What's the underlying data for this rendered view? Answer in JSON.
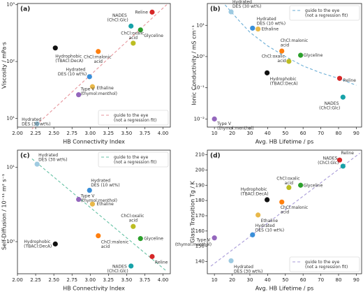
{
  "chart_data": [
    {
      "type": "scatter",
      "panel": "(a)",
      "x_label": "HB Connectivity Index",
      "y_label": "Viscosity / mPa·s",
      "log_y": true,
      "legend": "lower right",
      "xlim": [
        2.0,
        4.1
      ],
      "ylim": [
        7,
        1050
      ],
      "xticks": [
        {
          "value": 2,
          "label": "2.00"
        },
        2.25,
        {
          "value": 2.5,
          "label": "2.50"
        },
        2.75,
        {
          "value": 3,
          "label": "3.00"
        },
        3.25,
        {
          "value": 3.5,
          "label": "3.50"
        },
        3.75,
        {
          "value": 4,
          "label": "4.00"
        }
      ],
      "yticks": [
        {
          "value": 10,
          "label": "10¹"
        },
        {
          "value": 100,
          "label": "10²"
        },
        {
          "value": 1000,
          "label": "10³"
        }
      ],
      "categories": [
        "Reline",
        "NADES (ChCl:Glc)",
        "Glyceline",
        "ChCl:oxalic acid",
        "Hydrophobic (TBACl:DecA)",
        "ChCl:malonic acid",
        "Hydrated DES (10 wt%)",
        "Ethaline",
        "Type V (thymol:menthol)",
        "Hydrated DES (30 wt%)"
      ],
      "x": [
        3.85,
        3.56,
        3.69,
        3.59,
        2.52,
        3.11,
        2.99,
        3.03,
        2.84,
        2.27
      ],
      "values": [
        740,
        420,
        360,
        210,
        173,
        150,
        54,
        36,
        26,
        8
      ],
      "colors": [
        "#d62728",
        "#17a2a8",
        "#2ca02c",
        "#bcbd22",
        "#111111",
        "#ff7f0e",
        "#3a8fd9",
        "#e8b84a",
        "#9467bd",
        "#9ecae1"
      ],
      "series": [
        {
          "name": "guide to the eye (not a regression fit)",
          "color": "#e7969c",
          "x": [
            2.2,
            4.05
          ],
          "values": [
            6.5,
            1000
          ]
        }
      ]
    },
    {
      "type": "scatter",
      "panel": "(b)",
      "x_label": "Avg. HB Lifetime / ps",
      "y_label": "Ionic Conductivity / mS cm⁻¹",
      "log_y": true,
      "legend": "upper right",
      "xlim": [
        6,
        93
      ],
      "ylim": [
        0.0055,
        50
      ],
      "xticks": [
        10,
        20,
        30,
        40,
        50,
        60,
        70,
        80,
        90
      ],
      "yticks": [
        {
          "value": 0.01,
          "label": "10⁻²"
        },
        {
          "value": 0.1,
          "label": "10⁻¹"
        },
        {
          "value": 1,
          "label": "10⁰"
        },
        {
          "value": 10,
          "label": "10¹"
        }
      ],
      "categories": [
        "Reline",
        "NADES (ChCl:Glc)",
        "Glyceline",
        "ChCl:oxalic acid",
        "Hydrophobic (TBACl:DecA)",
        "ChCl:malonic acid",
        "Hydrated DES (10 wt%)",
        "Ethaline",
        "Type V (thymol:menthol)",
        "Hydrated DES (30 wt%)"
      ],
      "x": [
        80.6,
        82.5,
        58.6,
        52,
        39.7,
        48,
        31.5,
        34.6,
        10,
        19.4
      ],
      "values": [
        0.2,
        0.05,
        1.1,
        0.7,
        0.3,
        1.5,
        8.1,
        7.6,
        0.01,
        27
      ],
      "colors": [
        "#d62728",
        "#17a2a8",
        "#2ca02c",
        "#bcbd22",
        "#111111",
        "#ff7f0e",
        "#3a8fd9",
        "#e8b84a",
        "#9467bd",
        "#9ecae1"
      ],
      "series": [
        {
          "name": "guide to the eye (not a regression fit)",
          "color": "#6baed6",
          "x": [
            16,
            20,
            25,
            30,
            40,
            50,
            60,
            70,
            80,
            90
          ],
          "values": [
            45,
            25,
            12,
            6,
            2.2,
            1.0,
            0.5,
            0.3,
            0.2,
            0.12
          ]
        }
      ]
    },
    {
      "type": "scatter",
      "panel": "(c)",
      "x_label": "HB Connectivity Index",
      "y_label": "Self-Diffusion / 10⁻¹¹ m² s⁻¹",
      "log_y": true,
      "legend": "upper right",
      "xlim": [
        2.0,
        4.1
      ],
      "ylim": [
        0.37,
        17
      ],
      "xticks": [
        {
          "value": 2,
          "label": "2.00"
        },
        2.25,
        {
          "value": 2.5,
          "label": "2.50"
        },
        2.75,
        {
          "value": 3,
          "label": "3.00"
        },
        3.25,
        {
          "value": 3.5,
          "label": "3.50"
        },
        3.75,
        {
          "value": 4,
          "label": "4.00"
        }
      ],
      "yticks": [
        {
          "value": 1,
          "label": "10⁰"
        },
        {
          "value": 10,
          "label": "10¹"
        }
      ],
      "categories": [
        "Reline",
        "NADES (ChCl:Glc)",
        "Glyceline",
        "ChCl:oxalic acid",
        "Hydrophobic (TBACl:DecA)",
        "ChCl:malonic acid",
        "Hydrated DES (10 wt%)",
        "Ethaline",
        "Type V (thymol:menthol)",
        "Hydrated DES (30 wt%)"
      ],
      "x": [
        3.85,
        3.56,
        3.69,
        3.59,
        2.52,
        3.11,
        2.99,
        3.03,
        2.84,
        2.27
      ],
      "values": [
        0.63,
        0.47,
        1.1,
        1.6,
        0.93,
        1.2,
        4.9,
        3.2,
        3.7,
        11
      ],
      "colors": [
        "#d62728",
        "#17a2a8",
        "#2ca02c",
        "#bcbd22",
        "#111111",
        "#ff7f0e",
        "#3a8fd9",
        "#e8b84a",
        "#9467bd",
        "#9ecae1"
      ],
      "series": [
        {
          "name": "guide to the eye (not a regression fit)",
          "color": "#66c2a5",
          "x": [
            2.2,
            4.05
          ],
          "values": [
            13,
            0.4
          ]
        }
      ]
    },
    {
      "type": "scatter",
      "panel": "(d)",
      "x_label": "Avg. HB Lifetime / ps",
      "y_label": "Glass Transition Tg / K",
      "log_y": false,
      "legend": "lower right",
      "xlim": [
        6,
        93
      ],
      "ylim": [
        132,
        213
      ],
      "xticks": [
        10,
        20,
        30,
        40,
        50,
        60,
        70,
        80,
        90
      ],
      "yticks": [
        140,
        150,
        160,
        170,
        180,
        190,
        200,
        210
      ],
      "categories": [
        "Reline",
        "NADES (ChCl:Glc)",
        "Glyceline",
        "ChCl:oxalic acid",
        "Hydrophobic (TBACl:DecA)",
        "ChCl:malonic acid",
        "Hydrated DES (10 wt%)",
        "Ethaline",
        "Type V (thymol:menthol)",
        "Hydrated DES (30 wt%)"
      ],
      "x": [
        80.6,
        82.5,
        58.6,
        52,
        39.7,
        48,
        31.5,
        34.6,
        10,
        19.4
      ],
      "values": [
        206.5,
        202.5,
        190,
        188.5,
        180.5,
        179,
        157.5,
        170.5,
        155.5,
        140.5
      ],
      "colors": [
        "#d62728",
        "#17a2a8",
        "#2ca02c",
        "#bcbd22",
        "#111111",
        "#ff7f0e",
        "#3a8fd9",
        "#e8b84a",
        "#9467bd",
        "#9ecae1"
      ],
      "series": [
        {
          "name": "guide to the eye (not a regression fit)",
          "color": "#a89bd8",
          "x": [
            8,
            92
          ],
          "values": [
            137,
            211
          ]
        }
      ]
    }
  ]
}
